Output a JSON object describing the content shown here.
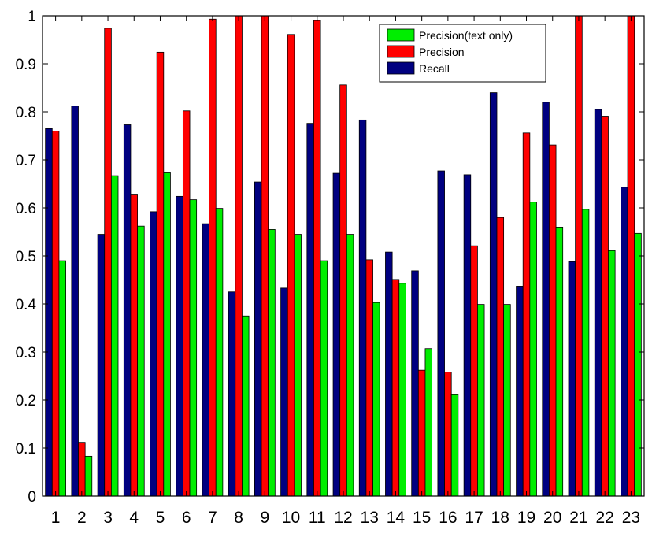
{
  "chart_data": {
    "type": "bar",
    "categories": [
      "1",
      "2",
      "3",
      "4",
      "5",
      "6",
      "7",
      "8",
      "9",
      "10",
      "11",
      "12",
      "13",
      "14",
      "15",
      "16",
      "17",
      "18",
      "19",
      "20",
      "21",
      "22",
      "23"
    ],
    "series": [
      {
        "name": "Recall",
        "color": "#000080",
        "values": [
          0.765,
          0.812,
          0.545,
          0.773,
          0.592,
          0.624,
          0.567,
          0.425,
          0.654,
          0.433,
          0.776,
          0.672,
          0.783,
          0.508,
          0.469,
          0.677,
          0.669,
          0.84,
          0.437,
          0.82,
          0.488,
          0.805,
          0.643
        ]
      },
      {
        "name": "Precision",
        "color": "#ff0000",
        "values": [
          0.76,
          0.112,
          0.974,
          0.627,
          0.924,
          0.802,
          0.993,
          1.0,
          1.0,
          0.961,
          0.99,
          0.856,
          0.492,
          0.451,
          0.262,
          0.258,
          0.521,
          0.58,
          0.756,
          0.731,
          1.0,
          0.791,
          1.0
        ]
      },
      {
        "name": "Precision(text only)",
        "color": "#00ee00",
        "values": [
          0.49,
          0.083,
          0.667,
          0.562,
          0.673,
          0.617,
          0.599,
          0.375,
          0.555,
          0.545,
          0.49,
          0.545,
          0.403,
          0.443,
          0.307,
          0.211,
          0.399,
          0.399,
          0.612,
          0.56,
          0.597,
          0.511,
          0.547
        ]
      }
    ],
    "legend_order": [
      "Precision(text only)",
      "Precision",
      "Recall"
    ],
    "legend_position": "top-right",
    "yticks": [
      "0",
      "0.1",
      "0.2",
      "0.3",
      "0.4",
      "0.5",
      "0.6",
      "0.7",
      "0.8",
      "0.9",
      "1"
    ],
    "ylim": [
      0,
      1
    ],
    "grid": false
  }
}
